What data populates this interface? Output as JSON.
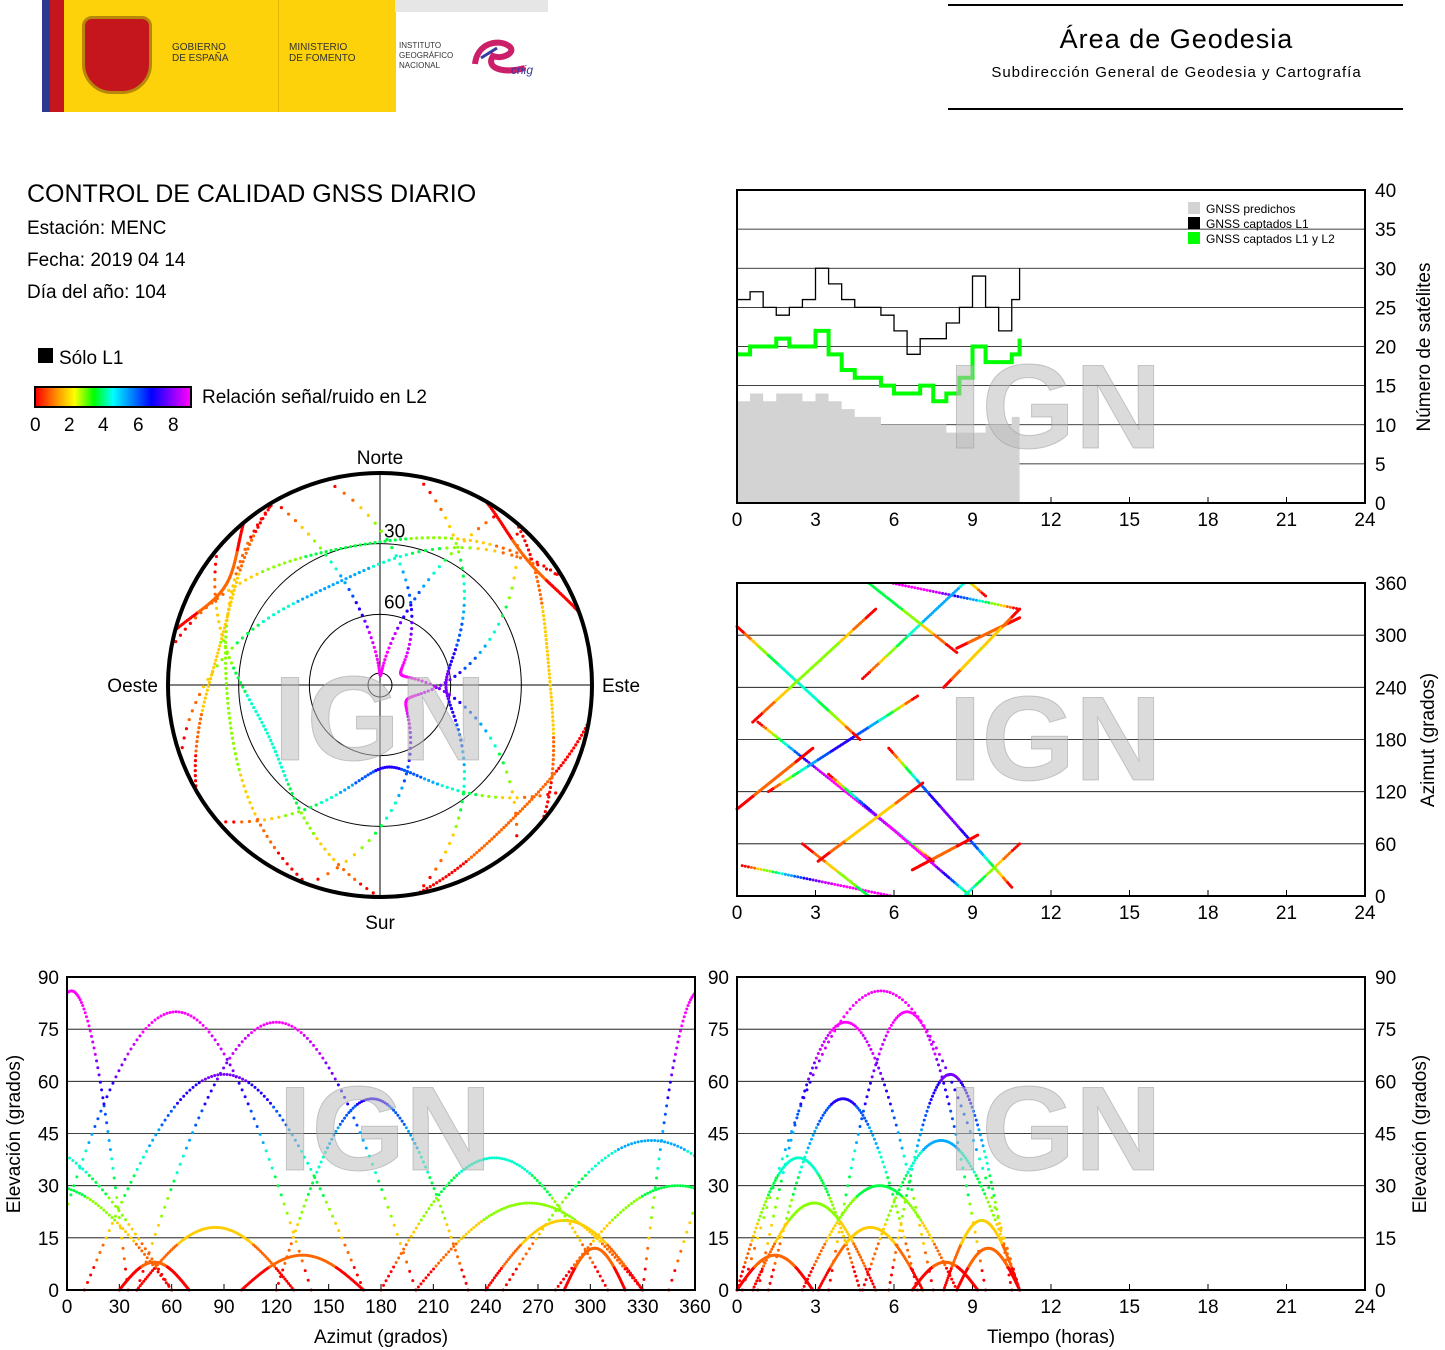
{
  "header": {
    "logos": {
      "gobierno": "GOBIERNO\nDE ESPAÑA",
      "ministerio": "MINISTERIO\nDE FOMENTO",
      "instituto": "INSTITUTO\nGEOGRÁFICO\nNACIONAL",
      "cnig": "cnig"
    },
    "area_title": "Área de Geodesia",
    "area_subtitle": "Subdirección General de Geodesia y Cartografía"
  },
  "report": {
    "title": "CONTROL DE CALIDAD GNSS DIARIO",
    "station": "Estación: MENC",
    "date": "Fecha: 2019 04 14",
    "doy": "Día del año: 104"
  },
  "legend": {
    "l1_only": "Sólo L1",
    "snr_label": "Relación señal/ruido en L2",
    "snr_ticks": [
      "0",
      "2",
      "4",
      "6",
      "8"
    ]
  },
  "watermark": "IGN",
  "colors": {
    "predicted": "#d3d3d3",
    "l1": "#000000",
    "l1l2": "#00ff00"
  },
  "chart_data": [
    {
      "id": "satellites",
      "type": "area",
      "legend": [
        "GNSS predichos",
        "GNSS captados L1",
        "GNSS captados L1 y L2"
      ],
      "ylabel": "Número de satélites",
      "xlim": [
        0,
        24
      ],
      "ylim": [
        0,
        40
      ],
      "xticks": [
        "0",
        "3",
        "6",
        "9",
        "12",
        "15",
        "18",
        "21",
        "24"
      ],
      "yticks": [
        "0",
        "5",
        "10",
        "15",
        "20",
        "25",
        "30",
        "35",
        "40"
      ],
      "x": [
        0,
        0.5,
        1,
        1.5,
        2,
        2.5,
        3,
        3.5,
        4,
        4.5,
        5,
        5.5,
        6,
        6.5,
        7,
        7.5,
        8,
        8.5,
        9,
        9.5,
        10,
        10.5,
        10.8
      ],
      "series": [
        {
          "name": "GNSS predichos",
          "values": [
            13,
            14,
            13,
            14,
            14,
            13,
            14,
            13,
            12,
            11,
            11,
            10,
            10,
            10,
            10,
            10,
            9,
            9,
            9,
            10,
            10,
            11,
            11
          ]
        },
        {
          "name": "GNSS captados L1",
          "values": [
            26,
            27,
            25,
            24,
            25,
            26,
            30,
            28,
            26,
            25,
            25,
            24,
            22,
            19,
            21,
            21,
            23,
            25,
            29,
            25,
            22,
            26,
            30
          ]
        },
        {
          "name": "GNSS captados L1 y L2",
          "values": [
            19,
            20,
            20,
            21,
            20,
            20,
            22,
            19,
            17,
            16,
            16,
            15,
            14,
            14,
            15,
            13,
            14,
            16,
            20,
            18,
            18,
            19,
            21
          ]
        }
      ]
    },
    {
      "id": "azimut-time",
      "type": "scatter",
      "ylabel": "Azimut (grados)",
      "xlim": [
        0,
        24
      ],
      "ylim": [
        0,
        360
      ],
      "xticks": [
        "0",
        "3",
        "6",
        "9",
        "12",
        "15",
        "18",
        "21",
        "24"
      ],
      "yticks": [
        "0",
        "60",
        "120",
        "180",
        "240",
        "300",
        "360"
      ]
    },
    {
      "id": "skyplot",
      "type": "scatter",
      "labels": {
        "north": "Norte",
        "south": "Sur",
        "west": "Oeste",
        "east": "Este"
      },
      "rings": [
        "30",
        "60"
      ]
    },
    {
      "id": "elev-azimut",
      "type": "scatter",
      "xlabel": "Azimut (grados)",
      "ylabel": "Elevación (grados)",
      "xlim": [
        0,
        360
      ],
      "ylim": [
        0,
        90
      ],
      "xticks": [
        "0",
        "30",
        "60",
        "90",
        "120",
        "150",
        "180",
        "210",
        "240",
        "270",
        "300",
        "330",
        "360"
      ],
      "yticks": [
        "0",
        "15",
        "30",
        "45",
        "60",
        "75",
        "90"
      ]
    },
    {
      "id": "elev-time",
      "type": "scatter",
      "xlabel": "Tiempo (horas)",
      "ylabel": "Elevación (grados)",
      "xlim": [
        0,
        24
      ],
      "ylim": [
        0,
        90
      ],
      "xticks": [
        "0",
        "3",
        "6",
        "9",
        "12",
        "15",
        "18",
        "21",
        "24"
      ],
      "yticks": [
        "0",
        "15",
        "30",
        "45",
        "60",
        "75",
        "90"
      ]
    }
  ],
  "tracks": [
    {
      "az0": 35,
      "az1": 330,
      "el": 86,
      "t0": 0.2,
      "t1": 10.8
    },
    {
      "az0": 200,
      "az1": 40,
      "el": 77,
      "t0": 0.8,
      "t1": 7.5
    },
    {
      "az0": 140,
      "az1": 345,
      "el": 80,
      "t0": 3.5,
      "t1": 9.5
    },
    {
      "az0": 170,
      "az1": 10,
      "el": 62,
      "t0": 5.8,
      "t1": 10.5
    },
    {
      "az0": 120,
      "az1": 230,
      "el": 55,
      "t0": 1.2,
      "t1": 6.9
    },
    {
      "az0": 250,
      "az1": 60,
      "el": 43,
      "t0": 4.8,
      "t1": 10.8
    },
    {
      "az0": 310,
      "az1": 180,
      "el": 38,
      "t0": 0,
      "t1": 4.7
    },
    {
      "az0": 60,
      "az1": 280,
      "el": 30,
      "t0": 2.5,
      "t1": 8.4
    },
    {
      "az0": 200,
      "az1": 330,
      "el": 25,
      "t0": 0.6,
      "t1": 5.3
    },
    {
      "az0": 40,
      "az1": 130,
      "el": 18,
      "t0": 3.1,
      "t1": 7.1
    },
    {
      "az0": 285,
      "az1": 320,
      "el": 12,
      "t0": 8.4,
      "t1": 10.8
    },
    {
      "az0": 100,
      "az1": 170,
      "el": 10,
      "t0": 0,
      "t1": 2.9
    },
    {
      "az0": 30,
      "az1": 70,
      "el": 8,
      "t0": 6.7,
      "t1": 9.2
    },
    {
      "az0": 240,
      "az1": 330,
      "el": 20,
      "t0": 7.9,
      "t1": 10.8
    }
  ]
}
